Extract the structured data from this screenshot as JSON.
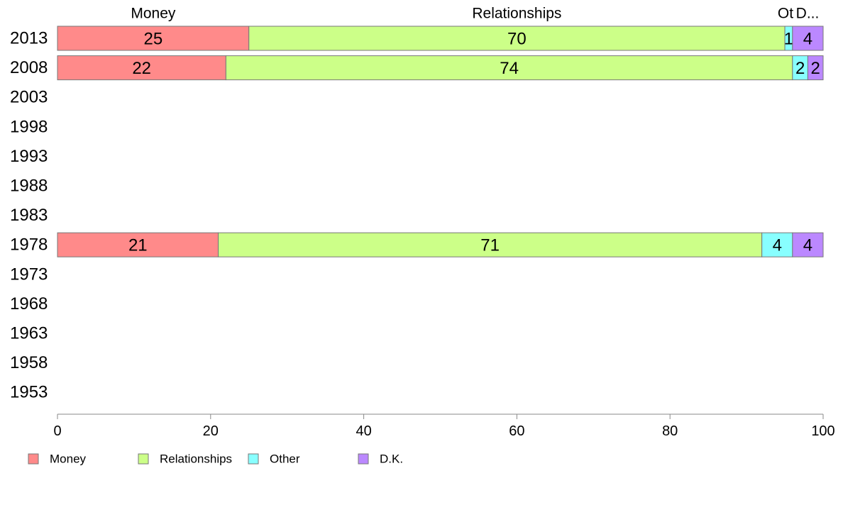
{
  "chart_data": {
    "type": "bar",
    "orientation": "horizontal",
    "stacked": true,
    "categories": [
      "2013",
      "2008",
      "2003",
      "1998",
      "1993",
      "1988",
      "1983",
      "1978",
      "1973",
      "1968",
      "1963",
      "1958",
      "1953"
    ],
    "series": [
      {
        "name": "Money",
        "color": "#ff8a8a",
        "values": [
          25,
          22,
          null,
          null,
          null,
          null,
          null,
          21,
          null,
          null,
          null,
          null,
          null
        ]
      },
      {
        "name": "Relationships",
        "color": "#ccff88",
        "values": [
          70,
          74,
          null,
          null,
          null,
          null,
          null,
          71,
          null,
          null,
          null,
          null,
          null
        ]
      },
      {
        "name": "Other",
        "color": "#88ffff",
        "values": [
          1,
          2,
          null,
          null,
          null,
          null,
          null,
          4,
          null,
          null,
          null,
          null,
          null
        ]
      },
      {
        "name": "D.K.",
        "color": "#bb88ff",
        "values": [
          4,
          2,
          null,
          null,
          null,
          null,
          null,
          4,
          null,
          null,
          null,
          null,
          null
        ]
      }
    ],
    "column_headers": [
      "Money",
      "Relationships",
      "Ot",
      "D..."
    ],
    "xlim": [
      0,
      100
    ],
    "xticks": [
      0,
      20,
      40,
      60,
      80,
      100
    ],
    "grid": false,
    "legend_position": "bottom"
  }
}
